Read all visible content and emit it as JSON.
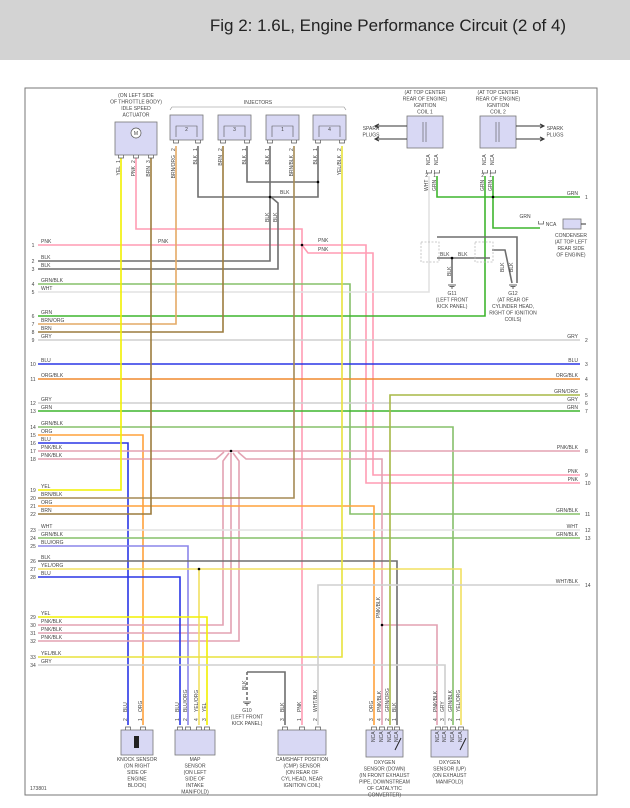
{
  "header": {
    "title": "Fig 2: 1.6L, Engine Performance Circuit (2 of 4)"
  },
  "figure_id": "173801",
  "colors": {
    "PNK": "#ff9cb4",
    "BLK": "#6e6e6e",
    "GRN/BLK": "#86c06a",
    "WHT": "#e2e2e2",
    "GRN": "#3fb52e",
    "BRN/ORG": "#e4aa66",
    "BRN": "#9c7c3e",
    "GRY": "#cfcfcf",
    "BLU": "#2a36e6",
    "ORG/BLK": "#f08a2e",
    "ORG": "#ffa23c",
    "PNK/BLK": "#e3a2b2",
    "YEL": "#f2f000",
    "BRN/BLK": "#a58a55",
    "BLU/ORG": "#8c86ea",
    "YEL/ORG": "#f2e060",
    "YEL/BLK": "#e8e23c",
    "WHT/BLK": "#cfcfcf",
    "GRN/ORG": "#a7b847",
    "component_fill": "#d8d8f4"
  },
  "left_circuits": [
    {
      "num": "1",
      "label": "PNK"
    },
    {
      "num": "2",
      "label": "BLK"
    },
    {
      "num": "3",
      "label": "BLK"
    },
    {
      "num": "4",
      "label": "GRN/BLK"
    },
    {
      "num": "5",
      "label": "WHT"
    },
    {
      "num": "6",
      "label": "GRN"
    },
    {
      "num": "7",
      "label": "BRN/ORG"
    },
    {
      "num": "8",
      "label": "BRN"
    },
    {
      "num": "9",
      "label": "GRY"
    },
    {
      "num": "10",
      "label": "BLU"
    },
    {
      "num": "11",
      "label": "ORG/BLK"
    },
    {
      "num": "12",
      "label": "GRY"
    },
    {
      "num": "13",
      "label": "GRN"
    },
    {
      "num": "14",
      "label": "GRN/BLK"
    },
    {
      "num": "15",
      "label": "ORG"
    },
    {
      "num": "16",
      "label": "BLU"
    },
    {
      "num": "17",
      "label": "PNK/BLK"
    },
    {
      "num": "18",
      "label": "PNK/BLK"
    },
    {
      "num": "19",
      "label": "YEL"
    },
    {
      "num": "20",
      "label": "BRN/BLK"
    },
    {
      "num": "21",
      "label": "ORG"
    },
    {
      "num": "22",
      "label": "BRN"
    },
    {
      "num": "23",
      "label": "WHT"
    },
    {
      "num": "24",
      "label": "GRN/BLK"
    },
    {
      "num": "25",
      "label": "BLU/ORG"
    },
    {
      "num": "26",
      "label": "BLK"
    },
    {
      "num": "27",
      "label": "YEL/ORG"
    },
    {
      "num": "28",
      "label": "BLU"
    },
    {
      "num": "29",
      "label": "YEL"
    },
    {
      "num": "30",
      "label": "PNK/BLK"
    },
    {
      "num": "31",
      "label": "PNK/BLK"
    },
    {
      "num": "32",
      "label": "PNK/BLK"
    },
    {
      "num": "33",
      "label": "YEL/BLK"
    },
    {
      "num": "34",
      "label": "GRY"
    }
  ],
  "right_circuits": [
    {
      "num": "1",
      "label": "GRN"
    },
    {
      "num": "2",
      "label": "GRY"
    },
    {
      "num": "3",
      "label": "BLU"
    },
    {
      "num": "4",
      "label": "ORG/BLK"
    },
    {
      "num": "5",
      "label": "GRN/ORG"
    },
    {
      "num": "6",
      "label": "GRY"
    },
    {
      "num": "7",
      "label": "GRN"
    },
    {
      "num": "8",
      "label": "PNK/BLK"
    },
    {
      "num": "9",
      "label": "PNK"
    },
    {
      "num": "10",
      "label": "PNK"
    },
    {
      "num": "11",
      "label": "GRN/BLK"
    },
    {
      "num": "12",
      "label": "WHT"
    },
    {
      "num": "13",
      "label": "GRN/BLK"
    },
    {
      "num": "14",
      "label": "WHT/BLK"
    }
  ],
  "components": {
    "iac": {
      "caption": [
        "(ON LEFT SIDE",
        "OF THROTTLE BODY)",
        "IDLE SPEED",
        "ACTUATOR"
      ],
      "symbol": "M",
      "pins": [
        {
          "num": "1",
          "label": "YEL"
        },
        {
          "num": "2",
          "label": "PNK"
        },
        {
          "num": "3",
          "label": "BRN"
        }
      ]
    },
    "injectors": {
      "caption": "INJECTORS",
      "items": [
        {
          "label": "2",
          "pins": [
            {
              "num": "2",
              "label": "BRN/ORG"
            },
            {
              "num": "1",
              "label": "BLK"
            }
          ]
        },
        {
          "label": "3",
          "pins": [
            {
              "num": "2",
              "label": "BRN"
            },
            {
              "num": "1",
              "label": "BLK"
            }
          ]
        },
        {
          "label": "1",
          "pins": [
            {
              "num": "1",
              "label": "BLK"
            },
            {
              "num": "2",
              "label": "BRN/BLK"
            }
          ]
        },
        {
          "label": "4",
          "pins": [
            {
              "num": "1",
              "label": "BLK"
            },
            {
              "num": "2",
              "label": "YEL/BLK"
            }
          ]
        }
      ]
    },
    "coil1": {
      "caption": [
        "(AT TOP CENTER",
        "REAR OF ENGINE)",
        "IGNITION",
        "COIL 1"
      ],
      "pins": [
        {
          "num": "2",
          "label": "WHT",
          "cavity": "NCA"
        },
        {
          "num": "1",
          "label": "GRN",
          "cavity": "NCA"
        }
      ]
    },
    "coil2": {
      "caption": [
        "(AT TOP CENTER",
        "REAR OF ENGINE)",
        "IGNITION",
        "COIL 2"
      ],
      "pins": [
        {
          "num": "2",
          "label": "GRN",
          "cavity": "NCA"
        },
        {
          "num": "1",
          "label": "GRN",
          "cavity": "NCA"
        }
      ]
    },
    "spark_plugs_left": [
      "SPARK",
      "PLUGS"
    ],
    "spark_plugs_right": [
      "SPARK",
      "PLUGS"
    ],
    "condenser": {
      "caption": [
        "CONDENSER",
        "(AT TOP LEFT",
        "REAR SIDE",
        "OF ENGINE)"
      ],
      "wire": "GRN",
      "cavity": "NCA"
    },
    "g11": {
      "caption": [
        "G11",
        "(LEFT FRONT",
        "KICK PANEL)"
      ]
    },
    "g12": {
      "caption": [
        "G12",
        "(AT REAR OF",
        "CYLINDER HEAD,",
        "RIGHT OF IGNITION",
        "COILS)"
      ]
    },
    "g10": {
      "caption": [
        "G10",
        "(LEFT FRONT",
        "KICK PANEL)"
      ],
      "wire": "BLK"
    },
    "knock": {
      "caption": [
        "KNOCK SENSOR",
        "(ON RIGHT",
        "SIDE OF",
        "ENGINE",
        "BLOCK)"
      ],
      "pins": [
        {
          "num": "2",
          "label": "BLU"
        },
        {
          "num": "1",
          "label": "ORG"
        }
      ]
    },
    "map": {
      "caption": [
        "MAP",
        "SENSOR",
        "(ON LEFT",
        "SIDE OF",
        "INTAKE",
        "MANIFOLD)"
      ],
      "pins": [
        {
          "num": "1",
          "label": "BLU"
        },
        {
          "num": "2",
          "label": "BLU/ORG"
        },
        {
          "num": "4",
          "label": "YEL/ORG"
        },
        {
          "num": "3",
          "label": "YEL"
        }
      ]
    },
    "cmp": {
      "caption": [
        "CAMSHAFT POSITION",
        "(CMP) SENSOR",
        "(ON REAR OF",
        "CYL HEAD, NEAR",
        "IGNITION COIL)"
      ],
      "pins": [
        {
          "num": "3",
          "label": "BLK"
        },
        {
          "num": "1",
          "label": "PNK"
        },
        {
          "num": "2",
          "label": "WHT/BLK"
        }
      ]
    },
    "o2_down": {
      "caption": [
        "OXYGEN",
        "SENSOR (DOWN)",
        "(IN FRONT EXHAUST",
        "PIPE, DOWNSTREAM",
        "OF CATALYTIC",
        "CONVERTER)"
      ],
      "pins": [
        {
          "num": "3",
          "label": "ORG",
          "cavity": "NCA"
        },
        {
          "num": "4",
          "label": "PNK/BLK",
          "cavity": "NCA"
        },
        {
          "num": "2",
          "label": "GRN/ORG",
          "cavity": "NCA"
        },
        {
          "num": "1",
          "label": "BLK",
          "cavity": "NCA"
        }
      ]
    },
    "o2_up": {
      "caption": [
        "OXYGEN",
        "SENSOR (UP)",
        "(ON EXHAUST",
        "MANIFOLD)"
      ],
      "pins": [
        {
          "num": "4",
          "label": "PNK/BLK",
          "cavity": "NCA"
        },
        {
          "num": "3",
          "label": "GRY",
          "cavity": "NCA"
        },
        {
          "num": "2",
          "label": "GRN/BLK",
          "cavity": "NCA"
        },
        {
          "num": "1",
          "label": "YEL/ORG",
          "cavity": "NCA"
        }
      ]
    }
  },
  "inline_labels": {
    "blk_bus": "BLK",
    "blk_down_a": "BLK",
    "blk_down_b": "BLK",
    "pnk_a": "PNK",
    "pnk_b": "PNK",
    "pnk_c": "PNK",
    "g11_blk_a": "BLK",
    "g11_blk_b": "BLK",
    "g11_blk_c": "BLK",
    "g12_blk_a": "BLK",
    "g12_blk_b": "BLK",
    "pnkblk_splice": "PNK/BLK"
  }
}
